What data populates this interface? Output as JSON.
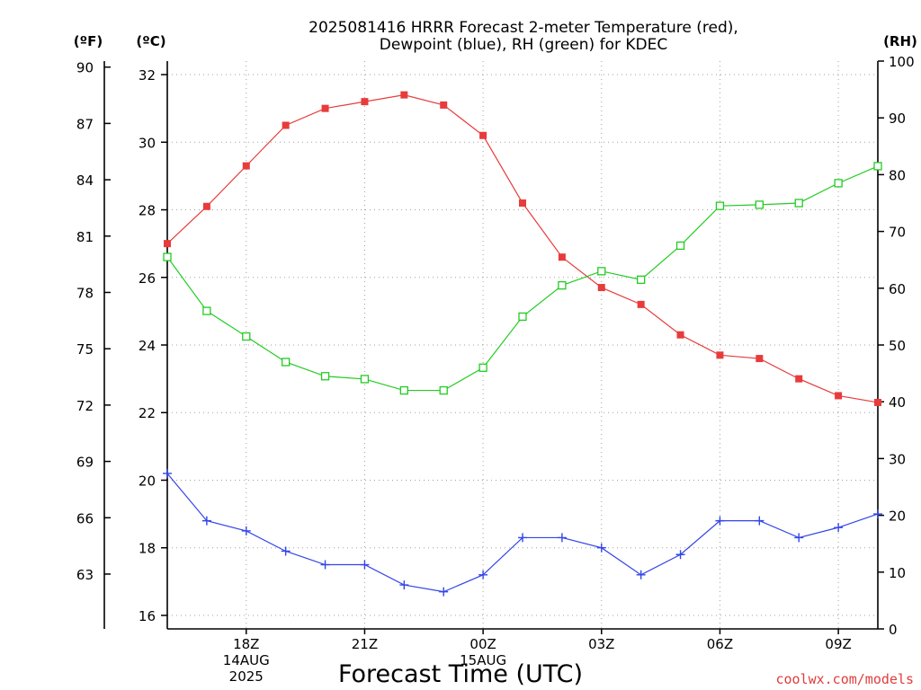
{
  "chart_data": {
    "type": "line",
    "title_lines": [
      "2025081416 HRRR Forecast 2-meter Temperature (red),",
      "Dewpoint (blue), RH (green) for KDEC"
    ],
    "xlabel": "Forecast Time (UTC)",
    "credit": "coolwx.com/models",
    "units": {
      "fahrenheit": "(ºF)",
      "celsius": "(ºC)",
      "rh": "(RH)"
    },
    "x": [
      "16Z",
      "17Z",
      "18Z",
      "19Z",
      "20Z",
      "21Z",
      "22Z",
      "23Z",
      "00Z",
      "01Z",
      "02Z",
      "03Z",
      "04Z",
      "05Z",
      "06Z",
      "07Z",
      "08Z",
      "09Z",
      "10Z"
    ],
    "x_ticks": [
      {
        "index": 2,
        "lines": [
          "18Z",
          "14AUG",
          "2025"
        ]
      },
      {
        "index": 5,
        "lines": [
          "21Z"
        ]
      },
      {
        "index": 8,
        "lines": [
          "00Z",
          "15AUG"
        ]
      },
      {
        "index": 11,
        "lines": [
          "03Z"
        ]
      },
      {
        "index": 14,
        "lines": [
          "06Z"
        ]
      },
      {
        "index": 17,
        "lines": [
          "09Z"
        ]
      }
    ],
    "celsius_axis": {
      "ylim": [
        15.6,
        32.4
      ],
      "ticks": [
        16,
        18,
        20,
        22,
        24,
        26,
        28,
        30,
        32
      ]
    },
    "fahrenheit_axis": {
      "ticks": [
        63,
        66,
        69,
        72,
        75,
        78,
        81,
        84,
        87,
        90
      ]
    },
    "rh_axis": {
      "ylim": [
        0,
        100
      ],
      "ticks": [
        0,
        10,
        20,
        30,
        40,
        50,
        60,
        70,
        80,
        90,
        100
      ]
    },
    "series": [
      {
        "name": "Temperature",
        "color": "#e83b3b",
        "marker": "filled-square",
        "axis": "celsius",
        "values": [
          27.0,
          28.1,
          29.3,
          30.5,
          31.0,
          31.2,
          31.4,
          31.1,
          30.2,
          28.2,
          26.6,
          25.7,
          25.2,
          24.3,
          23.7,
          23.6,
          23.0,
          22.5,
          22.3
        ]
      },
      {
        "name": "Dewpoint",
        "color": "#3344e8",
        "marker": "plus",
        "axis": "celsius",
        "values": [
          20.2,
          18.8,
          18.5,
          17.9,
          17.5,
          17.5,
          16.9,
          16.7,
          17.2,
          18.3,
          18.3,
          18.0,
          17.2,
          17.8,
          18.8,
          18.8,
          18.3,
          18.6,
          19.0
        ]
      },
      {
        "name": "RH",
        "color": "#22cc22",
        "marker": "open-square",
        "axis": "rh",
        "values": [
          65.5,
          56.0,
          51.5,
          47.0,
          44.5,
          44.0,
          42.0,
          42.0,
          46.0,
          55.0,
          60.5,
          63.0,
          61.5,
          67.5,
          74.5,
          74.7,
          75.0,
          78.5,
          81.5
        ]
      }
    ]
  }
}
